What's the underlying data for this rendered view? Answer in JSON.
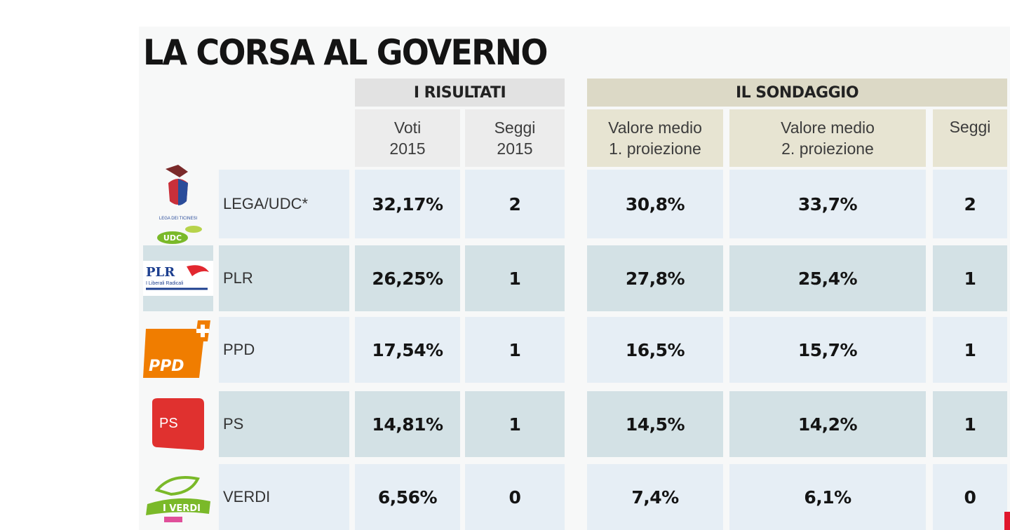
{
  "title": "LA CORSA AL GOVERNO",
  "groups": {
    "risultati": "I RISULTATI",
    "sondaggio": "IL SONDAGGIO"
  },
  "columns": {
    "voti": [
      "Voti",
      "2015"
    ],
    "seggi2015": [
      "Seggi",
      "2015"
    ],
    "proj1": [
      "Valore medio",
      "1. proiezione"
    ],
    "proj2": [
      "Valore medio",
      "2. proiezione"
    ],
    "seggi": [
      "Seggi"
    ]
  },
  "colors": {
    "group_header_grey": "#e2e2e2",
    "group_header_tan": "#dcd9c6",
    "sub_header_grey": "#ececec",
    "sub_header_tan": "#e7e4d2",
    "row_light": "#e6eef5",
    "row_dark": "#d3e1e5",
    "ppd_orange": "#f07d00",
    "ps_red": "#e0312f",
    "verdi_green": "#7ab929"
  },
  "rows": [
    {
      "party": "LEGA/UDC*",
      "logo": "lega-udc-logo",
      "voti": "32,17%",
      "seggi2015": "2",
      "proj1": "30,8%",
      "proj2": "33,7%",
      "seggi": "2"
    },
    {
      "party": "PLR",
      "logo": "plr-logo",
      "logo_text": "PLR",
      "logo_sub": "I Liberali Radicali",
      "voti": "26,25%",
      "seggi2015": "1",
      "proj1": "27,8%",
      "proj2": "25,4%",
      "seggi": "1"
    },
    {
      "party": "PPD",
      "logo": "ppd-logo",
      "logo_text": "PPD",
      "voti": "17,54%",
      "seggi2015": "1",
      "proj1": "16,5%",
      "proj2": "15,7%",
      "seggi": "1"
    },
    {
      "party": "PS",
      "logo": "ps-logo",
      "logo_text": "PS",
      "voti": "14,81%",
      "seggi2015": "1",
      "proj1": "14,5%",
      "proj2": "14,2%",
      "seggi": "1"
    },
    {
      "party": "VERDI",
      "logo": "verdi-logo",
      "logo_text": "I VERDI",
      "voti": "6,56%",
      "seggi2015": "0",
      "proj1": "7,4%",
      "proj2": "6,1%",
      "seggi": "0"
    }
  ],
  "chart_data": {
    "type": "table",
    "title": "LA CORSA AL GOVERNO",
    "column_groups": [
      {
        "name": "I RISULTATI",
        "columns": [
          "Voti 2015",
          "Seggi 2015"
        ]
      },
      {
        "name": "IL SONDAGGIO",
        "columns": [
          "Valore medio 1. proiezione",
          "Valore medio 2. proiezione",
          "Seggi"
        ]
      }
    ],
    "categories": [
      "LEGA/UDC*",
      "PLR",
      "PPD",
      "PS",
      "VERDI"
    ],
    "series": [
      {
        "name": "Voti 2015",
        "values": [
          32.17,
          26.25,
          17.54,
          14.81,
          6.56
        ]
      },
      {
        "name": "Seggi 2015",
        "values": [
          2,
          1,
          1,
          1,
          0
        ]
      },
      {
        "name": "Valore medio 1. proiezione",
        "values": [
          30.8,
          27.8,
          16.5,
          14.5,
          7.4
        ]
      },
      {
        "name": "Valore medio 2. proiezione",
        "values": [
          33.7,
          25.4,
          15.7,
          14.2,
          6.1
        ]
      },
      {
        "name": "Seggi",
        "values": [
          2,
          1,
          1,
          1,
          0
        ]
      }
    ]
  }
}
